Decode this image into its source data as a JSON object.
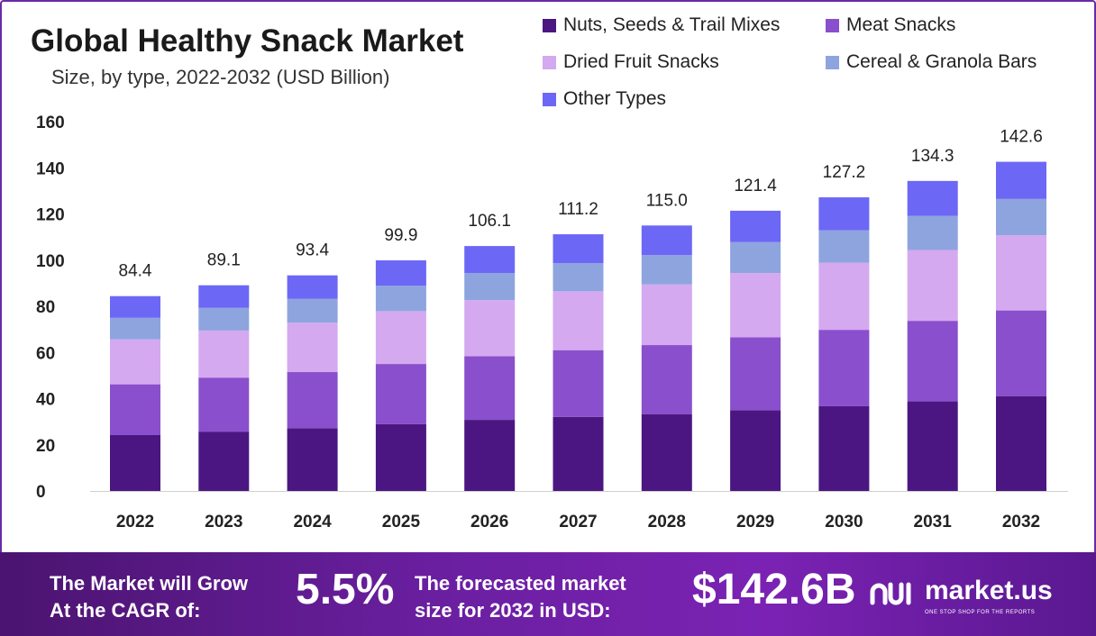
{
  "header": {
    "title": "Global Healthy Snack Market",
    "subtitle": "Size, by type, 2022-2032 (USD Billion)"
  },
  "legend": [
    {
      "label": "Nuts, Seeds & Trail Mixes",
      "color": "#4b1682"
    },
    {
      "label": "Meat Snacks",
      "color": "#8a4fcc"
    },
    {
      "label": "Dried Fruit Snacks",
      "color": "#d4a9ef"
    },
    {
      "label": "Cereal & Granola Bars",
      "color": "#8ea4de"
    },
    {
      "label": "Other Types",
      "color": "#6d67f6"
    }
  ],
  "chart_data": {
    "type": "bar",
    "stacked": true,
    "categories": [
      "2022",
      "2023",
      "2024",
      "2025",
      "2026",
      "2027",
      "2028",
      "2029",
      "2030",
      "2031",
      "2032"
    ],
    "series": [
      {
        "name": "Nuts, Seeds & Trail Mixes",
        "color": "#4b1682",
        "values": [
          24.2,
          25.7,
          27.2,
          28.9,
          30.8,
          32.1,
          33.3,
          35.0,
          36.7,
          38.8,
          41.1
        ]
      },
      {
        "name": "Meat Snacks",
        "color": "#8a4fcc",
        "values": [
          22.0,
          23.4,
          24.3,
          26.1,
          27.6,
          28.9,
          29.9,
          31.6,
          33.1,
          34.9,
          37.1
        ]
      },
      {
        "name": "Dried Fruit Snacks",
        "color": "#d4a9ef",
        "values": [
          19.5,
          20.4,
          21.4,
          22.9,
          24.3,
          25.5,
          26.3,
          27.8,
          29.1,
          30.7,
          32.6
        ]
      },
      {
        "name": "Cereal & Granola Bars",
        "color": "#8ea4de",
        "values": [
          9.3,
          9.8,
          10.3,
          11.0,
          11.7,
          12.2,
          12.7,
          13.4,
          14.0,
          14.8,
          15.7
        ]
      },
      {
        "name": "Other Types",
        "color": "#6d67f6",
        "values": [
          9.4,
          9.8,
          10.2,
          11.0,
          11.7,
          12.5,
          12.8,
          13.6,
          14.3,
          15.1,
          16.1
        ]
      }
    ],
    "totals": [
      "84.4",
      "89.1",
      "93.4",
      "99.9",
      "106.1",
      "111.2",
      "115.0",
      "121.4",
      "127.2",
      "134.3",
      "142.6"
    ],
    "ylim": [
      0,
      160
    ],
    "yticks": [
      0,
      20,
      40,
      60,
      80,
      100,
      120,
      140,
      160
    ],
    "legend_position": "top-right",
    "grid": false
  },
  "footer": {
    "cagr_label_line1": "The Market will Grow",
    "cagr_label_line2": "At the CAGR of:",
    "cagr_value": "5.5%",
    "size_label_line1": "The forecasted market",
    "size_label_line2": "size for 2032 in USD:",
    "size_value": "$142.6B",
    "brand_name": "market.us",
    "brand_tagline": "ONE STOP SHOP FOR THE REPORTS"
  }
}
